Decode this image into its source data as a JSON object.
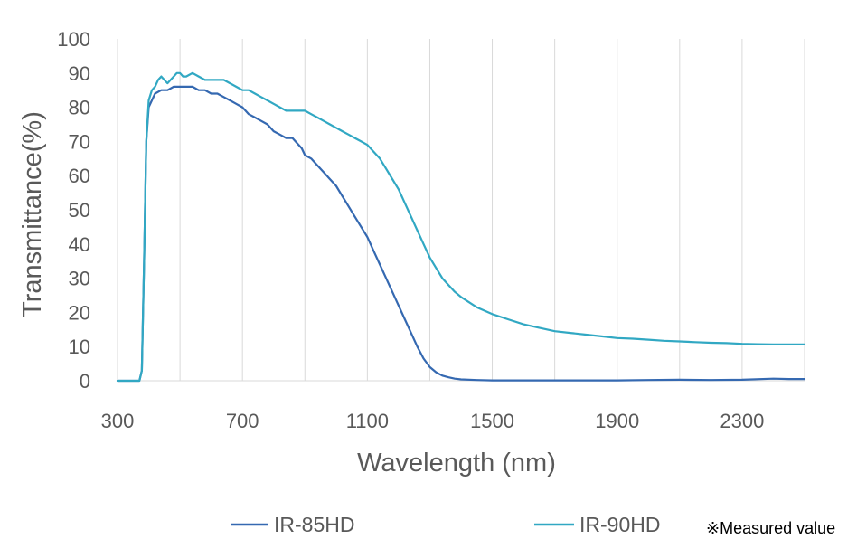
{
  "chart_data": {
    "type": "line",
    "title": "",
    "xlabel": "Wavelength (nm)",
    "ylabel": "Transmittance(%)",
    "xlim": [
      300,
      2500
    ],
    "ylim": [
      0,
      100
    ],
    "x_ticks": [
      300,
      700,
      1100,
      1500,
      1900,
      2300
    ],
    "y_ticks": [
      0,
      10,
      20,
      30,
      40,
      50,
      60,
      70,
      80,
      90,
      100
    ],
    "grid": "vertical",
    "legend_position": "bottom",
    "note": "※Measured value",
    "series": [
      {
        "name": "IR-85HD",
        "color": "#3569b1",
        "points": [
          [
            300,
            0
          ],
          [
            370,
            0
          ],
          [
            378,
            3
          ],
          [
            385,
            35
          ],
          [
            392,
            70
          ],
          [
            400,
            80
          ],
          [
            410,
            82
          ],
          [
            420,
            84
          ],
          [
            440,
            85
          ],
          [
            460,
            85
          ],
          [
            480,
            86
          ],
          [
            500,
            86
          ],
          [
            520,
            86
          ],
          [
            540,
            86
          ],
          [
            560,
            85
          ],
          [
            580,
            85
          ],
          [
            600,
            84
          ],
          [
            620,
            84
          ],
          [
            640,
            83
          ],
          [
            660,
            82
          ],
          [
            680,
            81
          ],
          [
            700,
            80
          ],
          [
            720,
            78
          ],
          [
            740,
            77
          ],
          [
            760,
            76
          ],
          [
            780,
            75
          ],
          [
            800,
            73
          ],
          [
            820,
            72
          ],
          [
            840,
            71
          ],
          [
            860,
            71
          ],
          [
            880,
            69
          ],
          [
            890,
            68
          ],
          [
            900,
            66
          ],
          [
            920,
            65
          ],
          [
            940,
            63
          ],
          [
            960,
            61
          ],
          [
            980,
            59
          ],
          [
            1000,
            57
          ],
          [
            1020,
            54
          ],
          [
            1040,
            51
          ],
          [
            1060,
            48
          ],
          [
            1080,
            45
          ],
          [
            1100,
            42
          ],
          [
            1120,
            38
          ],
          [
            1140,
            34
          ],
          [
            1160,
            30
          ],
          [
            1180,
            26
          ],
          [
            1200,
            22
          ],
          [
            1220,
            18
          ],
          [
            1240,
            14
          ],
          [
            1260,
            10
          ],
          [
            1280,
            6.5
          ],
          [
            1300,
            4
          ],
          [
            1320,
            2.5
          ],
          [
            1340,
            1.5
          ],
          [
            1360,
            1
          ],
          [
            1380,
            0.6
          ],
          [
            1400,
            0.4
          ],
          [
            1450,
            0.2
          ],
          [
            1500,
            0.1
          ],
          [
            1700,
            0.1
          ],
          [
            1900,
            0.1
          ],
          [
            2000,
            0.2
          ],
          [
            2100,
            0.3
          ],
          [
            2200,
            0.2
          ],
          [
            2300,
            0.3
          ],
          [
            2400,
            0.6
          ],
          [
            2450,
            0.5
          ],
          [
            2500,
            0.5
          ]
        ]
      },
      {
        "name": "IR-90HD",
        "color": "#31a8c3",
        "points": [
          [
            300,
            0
          ],
          [
            370,
            0
          ],
          [
            378,
            3
          ],
          [
            385,
            35
          ],
          [
            392,
            70
          ],
          [
            400,
            82
          ],
          [
            410,
            85
          ],
          [
            420,
            86
          ],
          [
            430,
            88
          ],
          [
            440,
            89
          ],
          [
            450,
            88
          ],
          [
            460,
            87
          ],
          [
            470,
            88
          ],
          [
            480,
            89
          ],
          [
            490,
            90
          ],
          [
            500,
            90
          ],
          [
            510,
            89
          ],
          [
            520,
            89
          ],
          [
            540,
            90
          ],
          [
            560,
            89
          ],
          [
            580,
            88
          ],
          [
            600,
            88
          ],
          [
            620,
            88
          ],
          [
            640,
            88
          ],
          [
            660,
            87
          ],
          [
            680,
            86
          ],
          [
            700,
            85
          ],
          [
            720,
            85
          ],
          [
            740,
            84
          ],
          [
            760,
            83
          ],
          [
            780,
            82
          ],
          [
            800,
            81
          ],
          [
            820,
            80
          ],
          [
            840,
            79
          ],
          [
            860,
            79
          ],
          [
            880,
            79
          ],
          [
            900,
            79
          ],
          [
            920,
            78
          ],
          [
            940,
            77
          ],
          [
            960,
            76
          ],
          [
            980,
            75
          ],
          [
            1000,
            74
          ],
          [
            1020,
            73
          ],
          [
            1040,
            72
          ],
          [
            1060,
            71
          ],
          [
            1080,
            70
          ],
          [
            1100,
            69
          ],
          [
            1120,
            67
          ],
          [
            1140,
            65
          ],
          [
            1160,
            62
          ],
          [
            1180,
            59
          ],
          [
            1200,
            56
          ],
          [
            1220,
            52
          ],
          [
            1240,
            48
          ],
          [
            1260,
            44
          ],
          [
            1280,
            40
          ],
          [
            1300,
            36
          ],
          [
            1320,
            33
          ],
          [
            1340,
            30
          ],
          [
            1360,
            28
          ],
          [
            1380,
            26
          ],
          [
            1400,
            24.5
          ],
          [
            1450,
            21.5
          ],
          [
            1500,
            19.5
          ],
          [
            1550,
            18
          ],
          [
            1600,
            16.5
          ],
          [
            1650,
            15.5
          ],
          [
            1700,
            14.5
          ],
          [
            1750,
            14
          ],
          [
            1800,
            13.5
          ],
          [
            1850,
            13
          ],
          [
            1900,
            12.5
          ],
          [
            1950,
            12.3
          ],
          [
            2000,
            12
          ],
          [
            2050,
            11.7
          ],
          [
            2100,
            11.5
          ],
          [
            2150,
            11.3
          ],
          [
            2200,
            11.1
          ],
          [
            2250,
            11
          ],
          [
            2300,
            10.8
          ],
          [
            2350,
            10.7
          ],
          [
            2400,
            10.6
          ],
          [
            2450,
            10.6
          ],
          [
            2500,
            10.6
          ]
        ]
      }
    ]
  }
}
